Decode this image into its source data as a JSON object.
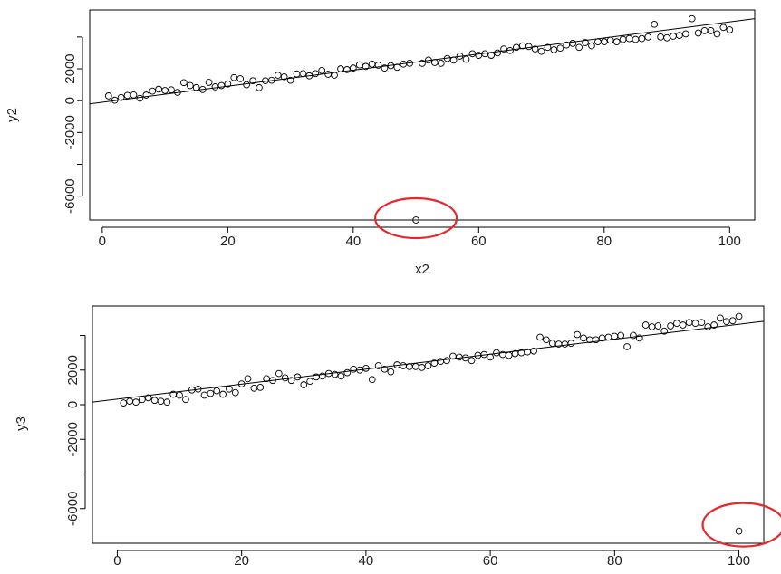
{
  "chart_data": [
    {
      "type": "scatter",
      "xlabel": "x2",
      "ylabel": "y2",
      "xlim": [
        -2,
        104
      ],
      "ylim": [
        -7500,
        5700
      ],
      "x_ticks": [
        0,
        20,
        40,
        60,
        80,
        100
      ],
      "x_tick_labels": [
        "0",
        "20",
        "40",
        "60",
        "80",
        "100"
      ],
      "y_ticks": [
        -6000,
        -4000,
        -2000,
        0,
        2000,
        4000
      ],
      "y_tick_labels": [
        "-6000",
        "",
        "-2000",
        "0",
        "2000",
        ""
      ],
      "regression_line": {
        "x": [
          -2,
          104
        ],
        "y": [
          -200,
          5150
        ]
      },
      "outlier": {
        "x": 50,
        "y": -7500
      },
      "highlight_color": "#e8262b",
      "grid": false,
      "legend": "none",
      "points": [
        [
          1,
          300
        ],
        [
          2,
          30
        ],
        [
          3,
          200
        ],
        [
          4,
          330
        ],
        [
          5,
          360
        ],
        [
          6,
          150
        ],
        [
          7,
          350
        ],
        [
          8,
          600
        ],
        [
          9,
          720
        ],
        [
          10,
          640
        ],
        [
          11,
          680
        ],
        [
          12,
          520
        ],
        [
          13,
          1130
        ],
        [
          14,
          950
        ],
        [
          15,
          820
        ],
        [
          16,
          700
        ],
        [
          17,
          1150
        ],
        [
          18,
          870
        ],
        [
          19,
          950
        ],
        [
          20,
          1050
        ],
        [
          21,
          1450
        ],
        [
          22,
          1380
        ],
        [
          23,
          1000
        ],
        [
          24,
          1250
        ],
        [
          25,
          820
        ],
        [
          26,
          1250
        ],
        [
          27,
          1280
        ],
        [
          28,
          1600
        ],
        [
          29,
          1500
        ],
        [
          30,
          1280
        ],
        [
          31,
          1680
        ],
        [
          32,
          1700
        ],
        [
          33,
          1560
        ],
        [
          34,
          1700
        ],
        [
          35,
          1900
        ],
        [
          36,
          1660
        ],
        [
          37,
          1600
        ],
        [
          38,
          2000
        ],
        [
          39,
          1950
        ],
        [
          40,
          2050
        ],
        [
          41,
          2250
        ],
        [
          42,
          2150
        ],
        [
          43,
          2300
        ],
        [
          44,
          2230
        ],
        [
          45,
          2050
        ],
        [
          46,
          2200
        ],
        [
          47,
          2100
        ],
        [
          48,
          2300
        ],
        [
          49,
          2350
        ],
        [
          51,
          2350
        ],
        [
          52,
          2550
        ],
        [
          53,
          2400
        ],
        [
          54,
          2350
        ],
        [
          55,
          2650
        ],
        [
          56,
          2550
        ],
        [
          57,
          2800
        ],
        [
          58,
          2600
        ],
        [
          59,
          2950
        ],
        [
          60,
          2850
        ],
        [
          61,
          2950
        ],
        [
          62,
          2850
        ],
        [
          63,
          3000
        ],
        [
          64,
          3250
        ],
        [
          65,
          3150
        ],
        [
          66,
          3350
        ],
        [
          67,
          3450
        ],
        [
          68,
          3400
        ],
        [
          69,
          3250
        ],
        [
          70,
          3100
        ],
        [
          71,
          3350
        ],
        [
          72,
          3200
        ],
        [
          73,
          3300
        ],
        [
          74,
          3500
        ],
        [
          75,
          3600
        ],
        [
          76,
          3350
        ],
        [
          77,
          3650
        ],
        [
          78,
          3450
        ],
        [
          79,
          3700
        ],
        [
          80,
          3700
        ],
        [
          81,
          3800
        ],
        [
          82,
          3700
        ],
        [
          83,
          3850
        ],
        [
          84,
          3900
        ],
        [
          85,
          3850
        ],
        [
          86,
          3900
        ],
        [
          87,
          4000
        ],
        [
          88,
          4800
        ],
        [
          89,
          4000
        ],
        [
          90,
          3950
        ],
        [
          91,
          4050
        ],
        [
          92,
          4100
        ],
        [
          93,
          4200
        ],
        [
          94,
          5150
        ],
        [
          95,
          4250
        ],
        [
          96,
          4400
        ],
        [
          97,
          4400
        ],
        [
          98,
          4200
        ],
        [
          99,
          4600
        ],
        [
          100,
          4450
        ]
      ]
    },
    {
      "type": "scatter",
      "xlabel": "",
      "ylabel": "y3",
      "xlim": [
        -4,
        104
      ],
      "ylim": [
        -8000,
        5700
      ],
      "x_ticks": [
        0,
        20,
        40,
        60,
        80,
        100
      ],
      "x_tick_labels": [
        "0",
        "20",
        "40",
        "60",
        "80",
        "100"
      ],
      "y_ticks": [
        -6000,
        -4000,
        -2000,
        0,
        2000,
        4000
      ],
      "y_tick_labels": [
        "-6000",
        "",
        "-2000",
        "0",
        "2000",
        ""
      ],
      "regression_line": {
        "x": [
          -4,
          104
        ],
        "y": [
          150,
          4820
        ]
      },
      "outlier": {
        "x": 100,
        "y": -7300
      },
      "highlight_color": "#e8262b",
      "grid": false,
      "legend": "none",
      "points": [
        [
          1,
          100
        ],
        [
          2,
          200
        ],
        [
          3,
          150
        ],
        [
          4,
          300
        ],
        [
          5,
          400
        ],
        [
          6,
          250
        ],
        [
          7,
          200
        ],
        [
          8,
          150
        ],
        [
          9,
          600
        ],
        [
          10,
          550
        ],
        [
          11,
          300
        ],
        [
          12,
          850
        ],
        [
          13,
          900
        ],
        [
          14,
          550
        ],
        [
          15,
          650
        ],
        [
          16,
          800
        ],
        [
          17,
          600
        ],
        [
          18,
          900
        ],
        [
          19,
          700
        ],
        [
          20,
          1200
        ],
        [
          21,
          1500
        ],
        [
          22,
          950
        ],
        [
          23,
          1000
        ],
        [
          24,
          1500
        ],
        [
          25,
          1400
        ],
        [
          26,
          1800
        ],
        [
          27,
          1550
        ],
        [
          28,
          1400
        ],
        [
          29,
          1600
        ],
        [
          30,
          1150
        ],
        [
          31,
          1350
        ],
        [
          32,
          1600
        ],
        [
          33,
          1650
        ],
        [
          34,
          1800
        ],
        [
          35,
          1750
        ],
        [
          36,
          1650
        ],
        [
          37,
          1850
        ],
        [
          38,
          2050
        ],
        [
          39,
          2000
        ],
        [
          40,
          2100
        ],
        [
          41,
          1450
        ],
        [
          42,
          2250
        ],
        [
          43,
          2050
        ],
        [
          44,
          1900
        ],
        [
          45,
          2300
        ],
        [
          46,
          2250
        ],
        [
          47,
          2200
        ],
        [
          48,
          2200
        ],
        [
          49,
          2150
        ],
        [
          50,
          2250
        ],
        [
          51,
          2400
        ],
        [
          52,
          2500
        ],
        [
          53,
          2550
        ],
        [
          54,
          2800
        ],
        [
          55,
          2750
        ],
        [
          56,
          2700
        ],
        [
          57,
          2550
        ],
        [
          58,
          2850
        ],
        [
          59,
          2900
        ],
        [
          60,
          2750
        ],
        [
          61,
          3000
        ],
        [
          62,
          2900
        ],
        [
          63,
          2850
        ],
        [
          64,
          2950
        ],
        [
          65,
          3000
        ],
        [
          66,
          3050
        ],
        [
          67,
          3100
        ],
        [
          68,
          3900
        ],
        [
          69,
          3750
        ],
        [
          70,
          3550
        ],
        [
          71,
          3500
        ],
        [
          72,
          3500
        ],
        [
          73,
          3550
        ],
        [
          74,
          4050
        ],
        [
          75,
          3850
        ],
        [
          76,
          3750
        ],
        [
          77,
          3750
        ],
        [
          78,
          3850
        ],
        [
          79,
          3900
        ],
        [
          80,
          3950
        ],
        [
          81,
          4000
        ],
        [
          82,
          3350
        ],
        [
          83,
          4000
        ],
        [
          84,
          3850
        ],
        [
          85,
          4600
        ],
        [
          86,
          4500
        ],
        [
          87,
          4550
        ],
        [
          88,
          4250
        ],
        [
          89,
          4550
        ],
        [
          90,
          4700
        ],
        [
          91,
          4600
        ],
        [
          92,
          4750
        ],
        [
          93,
          4700
        ],
        [
          94,
          4750
        ],
        [
          95,
          4500
        ],
        [
          96,
          4600
        ],
        [
          97,
          5000
        ],
        [
          98,
          4800
        ],
        [
          99,
          4850
        ],
        [
          100,
          5100
        ]
      ]
    }
  ]
}
